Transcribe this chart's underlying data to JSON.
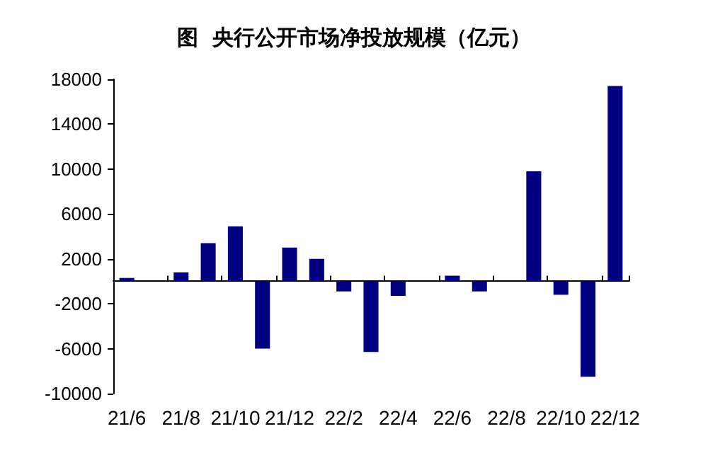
{
  "chart_data": {
    "type": "bar",
    "title": "图  央行公开市场净投放规模（亿元）",
    "categories": [
      "21/6",
      null,
      "21/8",
      null,
      "21/10",
      null,
      "21/12",
      null,
      "22/2",
      null,
      "22/4",
      null,
      "22/6",
      null,
      "22/8",
      null,
      "22/10",
      null,
      "22/12"
    ],
    "values": [
      300,
      0,
      800,
      3400,
      4900,
      -6000,
      3000,
      2000,
      -900,
      -6300,
      -1300,
      0,
      500,
      -900,
      0,
      9800,
      -1200,
      -8500,
      17400
    ],
    "color": "#000080",
    "ylim": [
      -10000,
      18000
    ],
    "yticks": [
      -10000,
      -6000,
      -2000,
      2000,
      6000,
      10000,
      14000,
      18000
    ],
    "grid": false
  }
}
